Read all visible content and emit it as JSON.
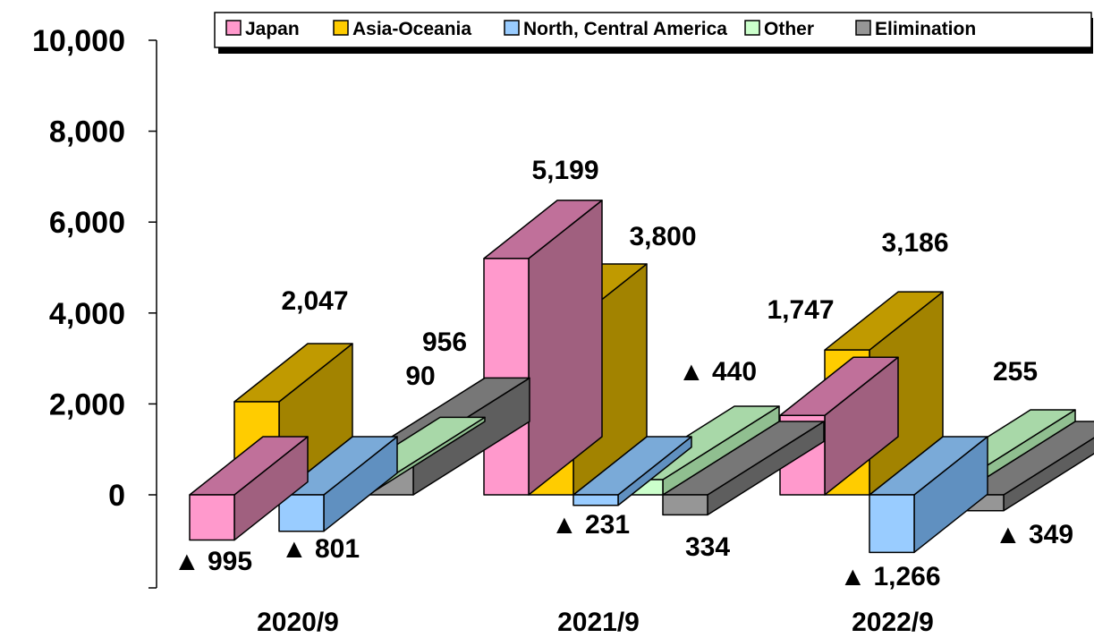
{
  "chart_data": {
    "type": "bar",
    "categories": [
      "2020/9",
      "2021/9",
      "2022/9"
    ],
    "series": [
      {
        "name": "Japan",
        "values": [
          -995,
          5199,
          1747
        ],
        "labels": [
          "▲ 995",
          "5,199",
          "1,747"
        ],
        "color": "#ff99cc"
      },
      {
        "name": "Asia-Oceania",
        "values": [
          2047,
          3800,
          3186
        ],
        "labels": [
          "2,047",
          "3,800",
          "3,186"
        ],
        "color": "#ffcc00"
      },
      {
        "name": "North, Central America",
        "values": [
          -801,
          -231,
          -1266
        ],
        "labels": [
          "▲ 801",
          "▲ 231",
          "▲ 1,266"
        ],
        "color": "#99ccff"
      },
      {
        "name": "Other",
        "values": [
          90,
          334,
          255
        ],
        "labels": [
          "90",
          "334",
          "255"
        ],
        "color": "#ccffcc"
      },
      {
        "name": "Elimination",
        "values": [
          956,
          -440,
          -349
        ],
        "labels": [
          "956",
          "▲ 440",
          "▲ 349"
        ],
        "color": "#969696"
      }
    ],
    "yticks": [
      "10,000",
      "8,000",
      "6,000",
      "4,000",
      "2,000",
      "0"
    ],
    "ylim": [
      -2000,
      10000
    ],
    "legend_position": "top",
    "grid": false,
    "title": "",
    "xlabel": "",
    "ylabel": ""
  }
}
